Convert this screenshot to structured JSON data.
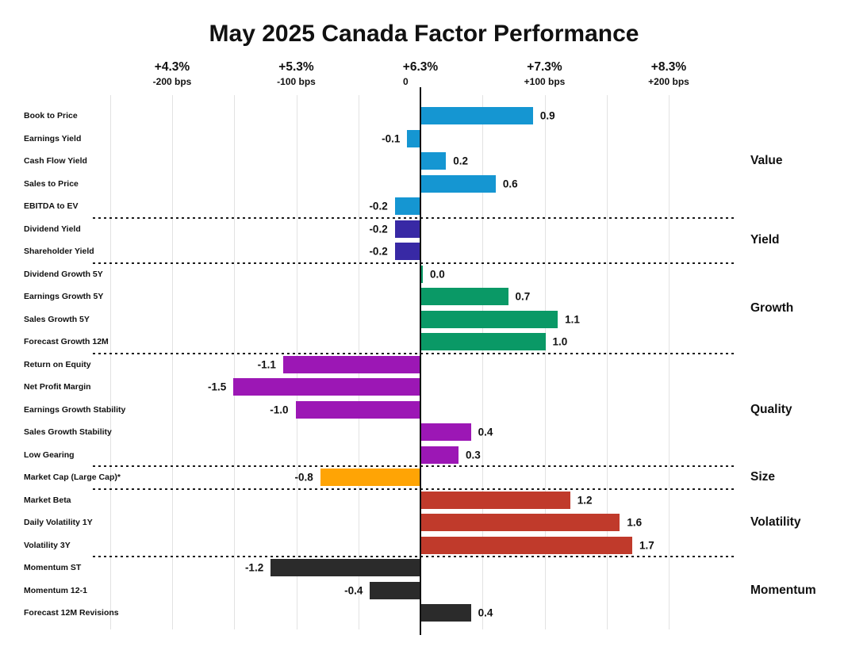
{
  "title": "May 2025 Canada Factor Performance",
  "chart_data": {
    "type": "bar",
    "orientation": "horizontal",
    "title": "May 2025 Canada Factor Performance",
    "x_ticks": [
      {
        "pct": "+4.3%",
        "bps": "-200 bps"
      },
      {
        "pct": "+5.3%",
        "bps": "-100 bps"
      },
      {
        "pct": "+6.3%",
        "bps": "0"
      },
      {
        "pct": "+7.3%",
        "bps": "+100 bps"
      },
      {
        "pct": "+8.3%",
        "bps": "+200 bps"
      }
    ],
    "x_axis_note": "bars measured in 100 bps units relative to 0 at +6.3%",
    "xlim": [
      -2.5,
      2.0
    ],
    "grid_step": 0.5,
    "legend_position": "right",
    "groups": [
      {
        "name": "Value",
        "color": "#1596d2",
        "factors": [
          {
            "label": "Book to Price",
            "value": 0.9
          },
          {
            "label": "Earnings Yield",
            "value": -0.1
          },
          {
            "label": "Cash Flow Yield",
            "value": 0.2
          },
          {
            "label": "Sales to Price",
            "value": 0.6
          },
          {
            "label": "EBITDA to EV",
            "value": -0.2
          }
        ]
      },
      {
        "name": "Yield",
        "color": "#3829a5",
        "factors": [
          {
            "label": "Dividend Yield",
            "value": -0.2
          },
          {
            "label": "Shareholder Yield",
            "value": -0.2
          }
        ]
      },
      {
        "name": "Growth",
        "color": "#0a9966",
        "factors": [
          {
            "label": "Dividend Growth 5Y",
            "value": 0.0
          },
          {
            "label": "Earnings Growth 5Y",
            "value": 0.7
          },
          {
            "label": "Sales Growth 5Y",
            "value": 1.1
          },
          {
            "label": "Forecast Growth 12M",
            "value": 1.0
          }
        ]
      },
      {
        "name": "Quality",
        "color": "#9c17b5",
        "factors": [
          {
            "label": "Return on Equity",
            "value": -1.1
          },
          {
            "label": "Net Profit Margin",
            "value": -1.5
          },
          {
            "label": "Earnings Growth Stability",
            "value": -1.0
          },
          {
            "label": "Sales Growth Stability",
            "value": 0.4
          },
          {
            "label": "Low Gearing",
            "value": 0.3
          }
        ]
      },
      {
        "name": "Size",
        "color": "#ffa405",
        "factors": [
          {
            "label": "Market Cap (Large Cap)*",
            "value": -0.8
          }
        ]
      },
      {
        "name": "Volatility",
        "color": "#c03a2b",
        "factors": [
          {
            "label": "Market Beta",
            "value": 1.2
          },
          {
            "label": "Daily Volatility 1Y",
            "value": 1.6
          },
          {
            "label": "Volatility 3Y",
            "value": 1.7
          }
        ]
      },
      {
        "name": "Momentum",
        "color": "#2b2b2b",
        "factors": [
          {
            "label": "Momentum ST",
            "value": -1.2
          },
          {
            "label": "Momentum 12-1",
            "value": -0.4
          },
          {
            "label": "Forecast 12M Revisions",
            "value": 0.4
          }
        ]
      }
    ]
  }
}
